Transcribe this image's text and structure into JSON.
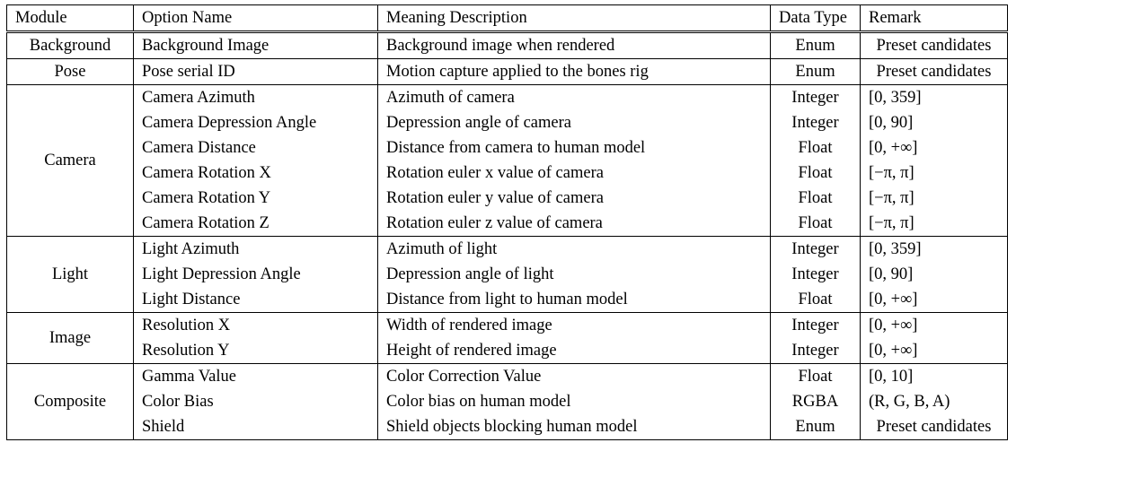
{
  "table": {
    "headers": [
      "Module",
      "Option Name",
      "Meaning Description",
      "Data Type",
      "Remark"
    ],
    "groups": [
      {
        "module": "Background",
        "rows": [
          [
            "Background Image",
            "Background image when rendered",
            "Enum",
            "Preset candidates"
          ]
        ]
      },
      {
        "module": "Pose",
        "rows": [
          [
            "Pose serial ID",
            "Motion capture applied to the bones rig",
            "Enum",
            "Preset candidates"
          ]
        ]
      },
      {
        "module": "Camera",
        "rows": [
          [
            "Camera Azimuth",
            "Azimuth of camera",
            "Integer",
            "[0, 359]"
          ],
          [
            "Camera Depression Angle",
            "Depression angle of camera",
            "Integer",
            "[0, 90]"
          ],
          [
            "Camera Distance",
            "Distance from camera to human model",
            "Float",
            "[0, +∞]"
          ],
          [
            "Camera Rotation X",
            "Rotation euler x value of camera",
            "Float",
            "[−π, π]"
          ],
          [
            "Camera Rotation Y",
            "Rotation euler y value of camera",
            "Float",
            "[−π, π]"
          ],
          [
            "Camera Rotation Z",
            "Rotation euler z value of camera",
            "Float",
            "[−π, π]"
          ]
        ]
      },
      {
        "module": "Light",
        "rows": [
          [
            "Light Azimuth",
            "Azimuth of light",
            "Integer",
            "[0, 359]"
          ],
          [
            "Light Depression Angle",
            "Depression angle of light",
            "Integer",
            "[0, 90]"
          ],
          [
            "Light Distance",
            "Distance from light to human model",
            "Float",
            "[0, +∞]"
          ]
        ]
      },
      {
        "module": "Image",
        "rows": [
          [
            "Resolution X",
            "Width of rendered image",
            "Integer",
            "[0, +∞]"
          ],
          [
            "Resolution Y",
            "Height of rendered image",
            "Integer",
            "[0, +∞]"
          ]
        ]
      },
      {
        "module": "Composite",
        "rows": [
          [
            "Gamma Value",
            "Color Correction Value",
            "Float",
            "[0, 10]"
          ],
          [
            "Color Bias",
            "Color bias on human model",
            "RGBA",
            "(R, G, B, A)"
          ],
          [
            "Shield",
            "Shield objects blocking human model",
            "Enum",
            "Preset candidates"
          ]
        ]
      }
    ]
  }
}
